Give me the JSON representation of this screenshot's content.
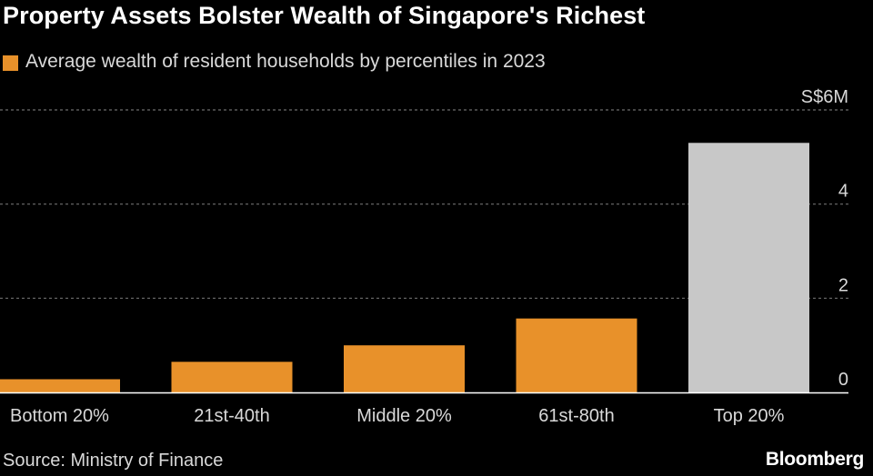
{
  "title": "Property Assets Bolster Wealth of Singapore's Richest",
  "legend": {
    "label": "Average wealth of resident households by percentiles in 2023",
    "color": "#e8912a"
  },
  "source": "Source: Ministry of Finance",
  "brand": "Bloomberg",
  "colors": {
    "background": "#000000",
    "bar": "#e8912a",
    "highlight_bar": "#c8c8c8",
    "gridline": "#6e6e6e",
    "baseline": "#ffffff",
    "text": "#d9d9d9"
  },
  "chart_data": {
    "type": "bar",
    "title": "Property Assets Bolster Wealth of Singapore's Richest",
    "ylabel": "S$",
    "y_unit_label": "S$6M",
    "ylim": [
      0,
      6
    ],
    "yticks": [
      {
        "value": 0,
        "label": "0"
      },
      {
        "value": 2,
        "label": "2"
      },
      {
        "value": 4,
        "label": "4"
      },
      {
        "value": 6,
        "label": "S$6M"
      }
    ],
    "categories": [
      "Bottom 20%",
      "21st-40th",
      "Middle 20%",
      "61st-80th",
      "Top 20%"
    ],
    "values": [
      0.28,
      0.65,
      1.0,
      1.57,
      5.3
    ],
    "bar_colors": [
      "#e8912a",
      "#e8912a",
      "#e8912a",
      "#e8912a",
      "#c8c8c8"
    ],
    "grid": true,
    "y_axis_position": "right"
  }
}
